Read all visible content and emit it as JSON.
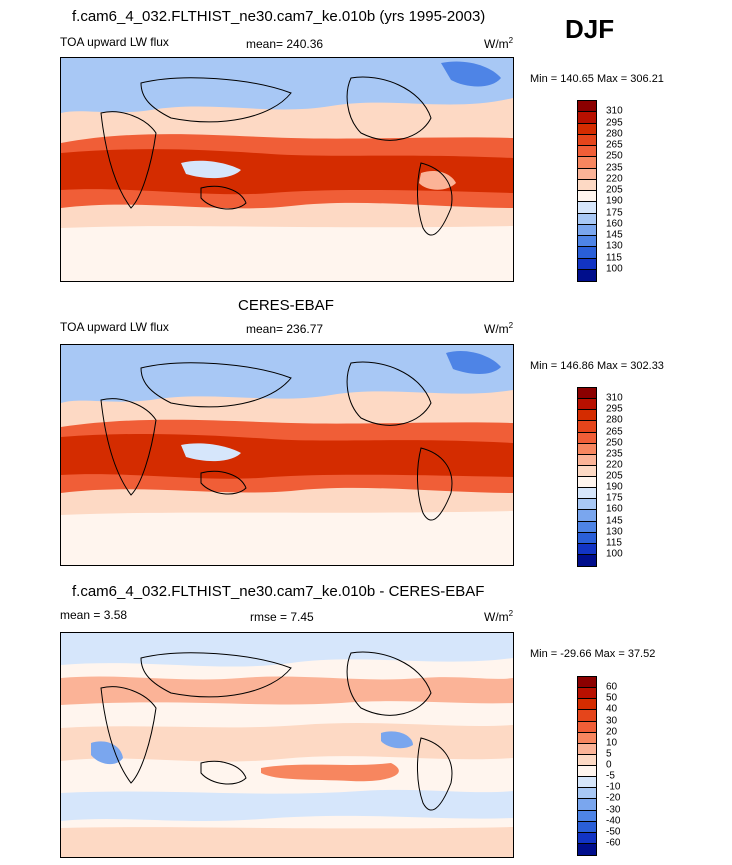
{
  "season": "DJF",
  "panels": [
    {
      "title": "f.cam6_4_032.FLTHIST_ne30.cam7_ke.010b (yrs 1995-2003)",
      "left_label": "TOA upward LW flux",
      "mid_label": "mean= 240.36",
      "units": "W/m",
      "units_exp": "2",
      "minmax": "Min = 140.65 Max = 306.21",
      "colorbar": {
        "labels": [
          "310",
          "295",
          "280",
          "265",
          "250",
          "235",
          "220",
          "205",
          "190",
          "175",
          "160",
          "145",
          "130",
          "115",
          "100"
        ],
        "colors": [
          "#8b0000",
          "#b81000",
          "#d42c00",
          "#e5451b",
          "#f05e37",
          "#f7865f",
          "#fbb397",
          "#fdd9c4",
          "#fff5ee",
          "#d6e6fb",
          "#a8c8f5",
          "#7aa6ee",
          "#4e84e6",
          "#2a5fd8",
          "#1234c4",
          "#000e8c"
        ]
      }
    },
    {
      "title": "CERES-EBAF",
      "left_label": "TOA upward LW flux",
      "mid_label": "mean= 236.77",
      "units": "W/m",
      "units_exp": "2",
      "minmax": "Min = 146.86 Max = 302.33",
      "colorbar": {
        "labels": [
          "310",
          "295",
          "280",
          "265",
          "250",
          "235",
          "220",
          "205",
          "190",
          "175",
          "160",
          "145",
          "130",
          "115",
          "100"
        ],
        "colors": [
          "#8b0000",
          "#b81000",
          "#d42c00",
          "#e5451b",
          "#f05e37",
          "#f7865f",
          "#fbb397",
          "#fdd9c4",
          "#fff5ee",
          "#d6e6fb",
          "#a8c8f5",
          "#7aa6ee",
          "#4e84e6",
          "#2a5fd8",
          "#1234c4",
          "#000e8c"
        ]
      }
    },
    {
      "title": "f.cam6_4_032.FLTHIST_ne30.cam7_ke.010b - CERES-EBAF",
      "left_label": "mean =   3.58",
      "mid_label": "rmse =   7.45",
      "units": "W/m",
      "units_exp": "2",
      "minmax": "Min = -29.66 Max =  37.52",
      "colorbar": {
        "labels": [
          "60",
          "50",
          "40",
          "30",
          "20",
          "10",
          "5",
          "0",
          "-5",
          "-10",
          "-20",
          "-30",
          "-40",
          "-50",
          "-60"
        ],
        "colors": [
          "#8b0000",
          "#b81000",
          "#d42c00",
          "#e5451b",
          "#f05e37",
          "#f7865f",
          "#fbb397",
          "#fdd9c4",
          "#fff5ee",
          "#d6e6fb",
          "#a8c8f5",
          "#7aa6ee",
          "#4e84e6",
          "#2a5fd8",
          "#1234c4",
          "#000e8c"
        ]
      }
    }
  ]
}
